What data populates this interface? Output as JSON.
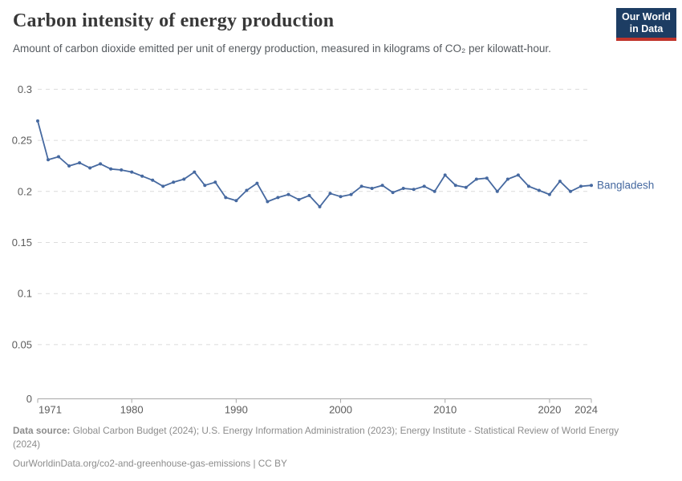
{
  "header": {
    "title": "Carbon intensity of energy production",
    "subtitle": "Amount of carbon dioxide emitted per unit of energy production, measured in kilograms of CO₂ per kilowatt-hour."
  },
  "logo": {
    "line1": "Our World",
    "line2": "in Data",
    "bg_color": "#1d3d63",
    "bar_color": "#c0342b"
  },
  "chart_data": {
    "type": "line",
    "title": "Carbon intensity of energy production",
    "xlabel": "",
    "ylabel": "kilograms of CO₂ per kilowatt-hour",
    "xlim": [
      1971,
      2024
    ],
    "ylim": [
      0,
      0.3
    ],
    "xticks": [
      1971,
      1980,
      1990,
      2000,
      2010,
      2020,
      2024
    ],
    "yticks": [
      0.3,
      0.25,
      0.2,
      0.15,
      0.1,
      0.05,
      0
    ],
    "ytick_labels": [
      "0.3",
      "0.25",
      "0.2",
      "0.15",
      "0.1",
      "0.05",
      "0"
    ],
    "grid": "horizontal-dashed",
    "legend": "end-of-line-label",
    "line_color": "#4669a0",
    "grid_color": "#dcdcdc",
    "axis_color": "#a7a7a7",
    "tick_label_color": "#5c5c5c",
    "series": [
      {
        "name": "Bangladesh",
        "color": "#4669a0",
        "x": [
          1971,
          1972,
          1973,
          1974,
          1975,
          1976,
          1977,
          1978,
          1979,
          1980,
          1981,
          1982,
          1983,
          1984,
          1985,
          1986,
          1987,
          1988,
          1989,
          1990,
          1991,
          1992,
          1993,
          1994,
          1995,
          1996,
          1997,
          1998,
          1999,
          2000,
          2001,
          2002,
          2003,
          2004,
          2005,
          2006,
          2007,
          2008,
          2009,
          2010,
          2011,
          2012,
          2013,
          2014,
          2015,
          2016,
          2017,
          2018,
          2019,
          2020,
          2021,
          2022,
          2023,
          2024
        ],
        "values": [
          0.269,
          0.231,
          0.234,
          0.225,
          0.228,
          0.223,
          0.227,
          0.222,
          0.221,
          0.219,
          0.215,
          0.211,
          0.205,
          0.209,
          0.212,
          0.219,
          0.206,
          0.209,
          0.194,
          0.191,
          0.201,
          0.208,
          0.19,
          0.194,
          0.197,
          0.192,
          0.196,
          0.185,
          0.198,
          0.195,
          0.197,
          0.205,
          0.203,
          0.206,
          0.199,
          0.203,
          0.202,
          0.205,
          0.2,
          0.216,
          0.206,
          0.204,
          0.212,
          0.213,
          0.2,
          0.212,
          0.216,
          0.205,
          0.201,
          0.197,
          0.21,
          0.2,
          0.205,
          0.206
        ]
      }
    ]
  },
  "footer": {
    "data_source_label": "Data source:",
    "data_source_text": " Global Carbon Budget (2024); U.S. Energy Information Administration (2023); Energy Institute - Statistical Review of World Energy (2024)",
    "citation": "OurWorldinData.org/co2-and-greenhouse-gas-emissions | CC BY"
  }
}
